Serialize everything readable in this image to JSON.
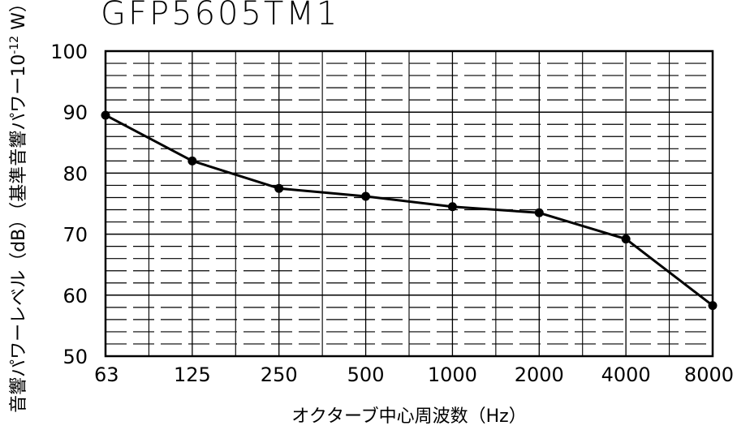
{
  "chart_data": {
    "type": "line",
    "title": "GFP5605TM1",
    "xlabel": "オクターブ中心周波数（Hz）",
    "ylabel": "音響パワーレベル（dB）（基準音響パワー10",
    "ylabel_exponent": "-12",
    "ylabel_unit": " W）",
    "x": [
      "63",
      "125",
      "250",
      "500",
      "1000",
      "2000",
      "4000",
      "8000"
    ],
    "y": [
      89.5,
      82.0,
      77.5,
      76.2,
      74.5,
      73.5,
      69.2,
      58.3
    ],
    "yticks": [
      "50",
      "60",
      "70",
      "80",
      "90",
      "100"
    ],
    "ylim": [
      50,
      100
    ],
    "grid": true,
    "line_color": "#000000"
  }
}
